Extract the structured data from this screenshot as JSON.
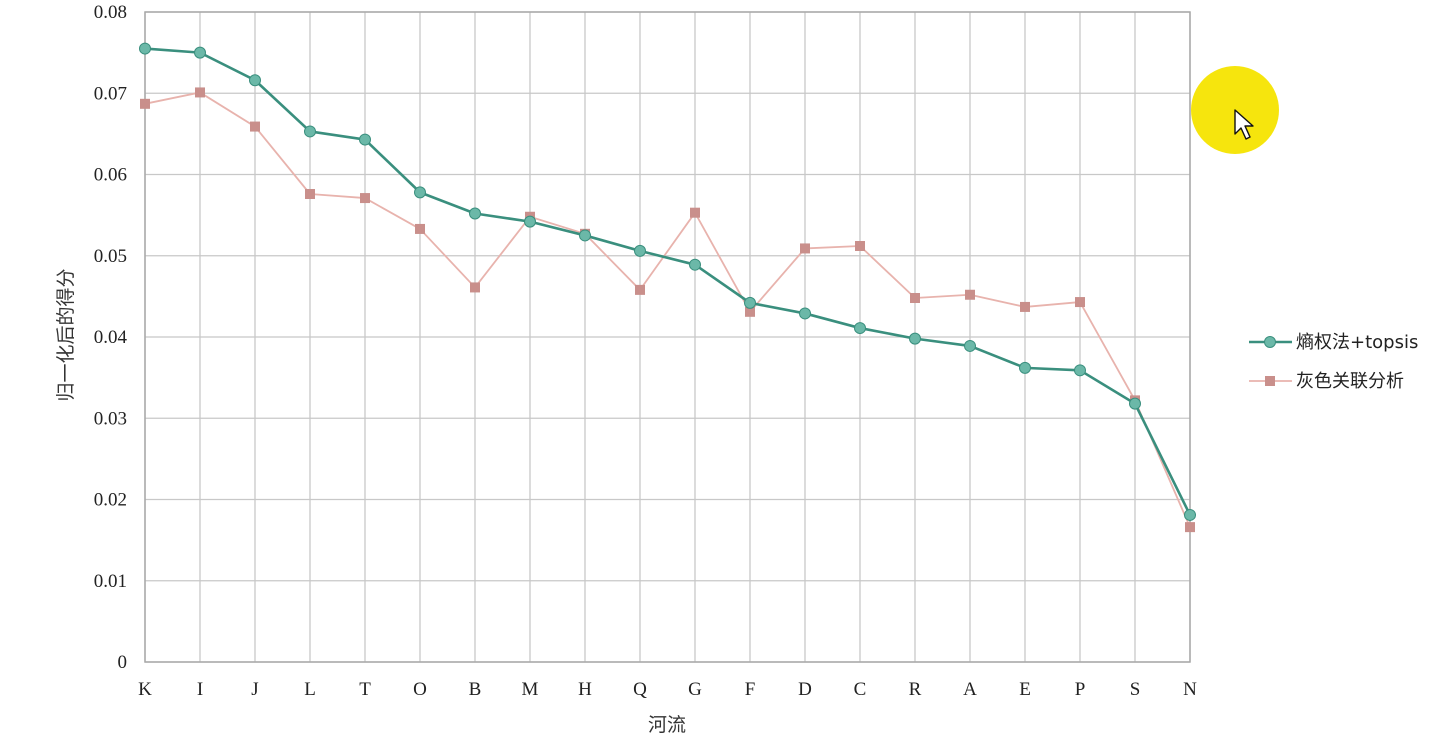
{
  "chart_data": {
    "type": "line",
    "xlabel": "河流",
    "ylabel": "归一化后的得分",
    "categories": [
      "K",
      "I",
      "J",
      "L",
      "T",
      "O",
      "B",
      "M",
      "H",
      "Q",
      "G",
      "F",
      "D",
      "C",
      "R",
      "A",
      "E",
      "P",
      "S",
      "N"
    ],
    "ylim": [
      0,
      0.08
    ],
    "yticks": [
      "0",
      "0.01",
      "0.02",
      "0.03",
      "0.04",
      "0.05",
      "0.06",
      "0.07",
      "0.08"
    ],
    "grid": true,
    "legend_position": "right",
    "series": [
      {
        "name": "熵权法+topsis",
        "color": "#3a8f7e",
        "marker_color": "#6bb8a8",
        "values": [
          0.0755,
          0.075,
          0.0716,
          0.0653,
          0.0643,
          0.0578,
          0.0552,
          0.0542,
          0.0525,
          0.0506,
          0.0489,
          0.0442,
          0.0429,
          0.0411,
          0.0398,
          0.0389,
          0.0362,
          0.0359,
          0.0318,
          0.0181
        ]
      },
      {
        "name": "灰色关联分析",
        "color": "#e8b3ad",
        "marker_color": "#c98f8b",
        "values": [
          0.0687,
          0.0701,
          0.0659,
          0.0576,
          0.0571,
          0.0533,
          0.0461,
          0.0548,
          0.0527,
          0.0458,
          0.0553,
          0.0431,
          0.0509,
          0.0512,
          0.0448,
          0.0452,
          0.0437,
          0.0443,
          0.0322,
          0.0166
        ]
      }
    ]
  },
  "overlay": {
    "cursor_highlight_color": "#f5e400"
  }
}
